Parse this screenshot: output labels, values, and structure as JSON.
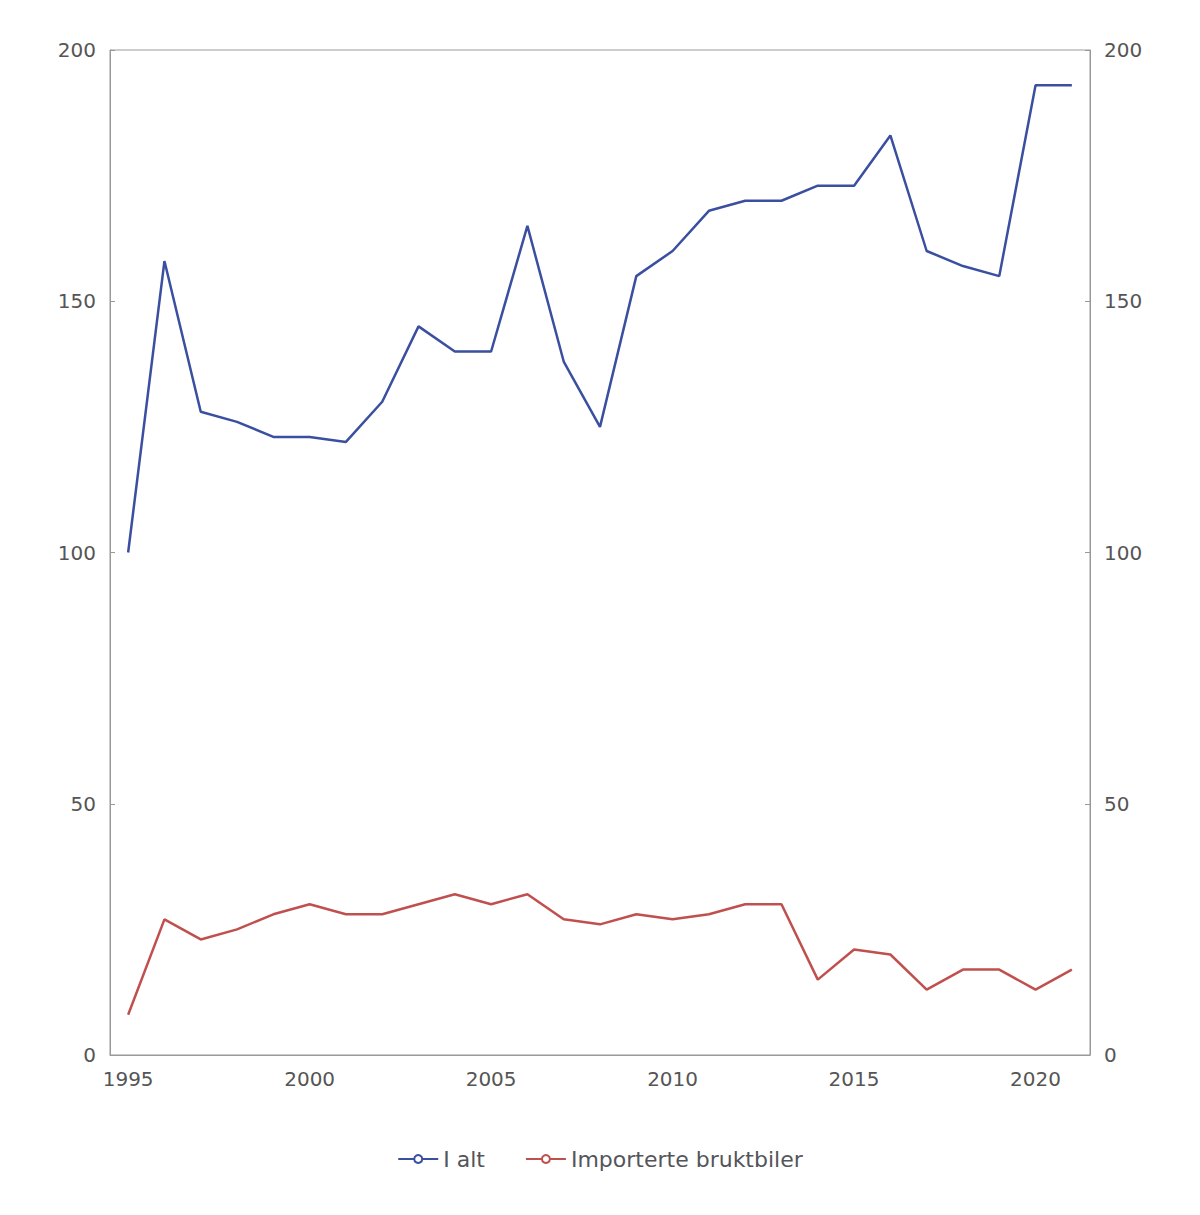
{
  "chart_data": {
    "type": "line",
    "x": [
      1995,
      1996,
      1997,
      1998,
      1999,
      2000,
      2001,
      2002,
      2003,
      2004,
      2005,
      2006,
      2007,
      2008,
      2009,
      2010,
      2011,
      2012,
      2013,
      2014,
      2015,
      2016,
      2017,
      2018,
      2019,
      2020,
      2021
    ],
    "series": [
      {
        "name": "I alt",
        "color": "#3A4FA0",
        "values": [
          100,
          158,
          128,
          126,
          123,
          123,
          122,
          130,
          145,
          140,
          140,
          165,
          138,
          125,
          155,
          160,
          168,
          170,
          170,
          173,
          173,
          183,
          160,
          157,
          155,
          193,
          193
        ]
      },
      {
        "name": "Importerte bruktbiler",
        "color": "#C0504D",
        "values": [
          8,
          27,
          23,
          25,
          28,
          30,
          28,
          28,
          30,
          32,
          30,
          32,
          27,
          26,
          28,
          27,
          28,
          30,
          30,
          15,
          21,
          20,
          13,
          17,
          17,
          13,
          17
        ]
      }
    ],
    "xlim": [
      1994.5,
      2021.5
    ],
    "xticks": [
      1995,
      2000,
      2005,
      2010,
      2015,
      2020
    ],
    "ylim": [
      0,
      200
    ],
    "yticks": [
      0,
      50,
      100,
      150,
      200
    ],
    "y2lim": [
      0,
      200
    ],
    "y2ticks": [
      0,
      50,
      100,
      150,
      200
    ],
    "grid": false,
    "legend": "bottom"
  }
}
